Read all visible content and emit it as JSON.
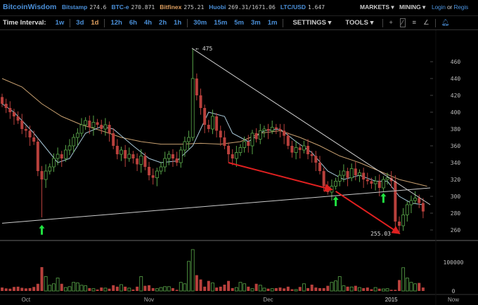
{
  "header": {
    "logo": "BitcoinWisdom",
    "tickers": [
      {
        "market": "Bitstamp",
        "price": "274.6",
        "highlight": false
      },
      {
        "market": "BTC-e",
        "price": "270.871",
        "highlight": false
      },
      {
        "market": "Bitfinex",
        "price": "275.21",
        "highlight": true
      },
      {
        "market": "Huobi",
        "price": "269.31/1671.06",
        "highlight": false
      },
      {
        "market": "LTC/USD",
        "price": "1.647",
        "highlight": false
      }
    ],
    "markets_label": "MARKETS ▾",
    "mining_label": "MINING ▾",
    "login": "Login",
    "or": "or",
    "register": "Regis"
  },
  "toolbar": {
    "time_interval_label": "Time Interval:",
    "intervals": [
      "1w",
      "3d",
      "1d",
      "12h",
      "6h",
      "4h",
      "2h",
      "1h",
      "30m",
      "15m",
      "5m",
      "3m",
      "1m"
    ],
    "active_interval": "1d",
    "settings_label": "SETTINGS ▾",
    "tools_label": "TOOLS ▾",
    "tool_icons": [
      "crosshair-icon",
      "trendline-icon",
      "horizontal-lines-icon",
      "fan-icon",
      "alert-bell-icon"
    ]
  },
  "chart_data": {
    "type": "candlestick",
    "start_date": "2014-09-25",
    "interval": "1d",
    "ylim": [
      250,
      470
    ],
    "yticks": [
      260,
      280,
      300,
      320,
      340,
      360,
      380,
      400,
      420,
      440,
      460
    ],
    "volume_ticks": [
      "0",
      "100000"
    ],
    "xticks": [
      {
        "label": "Oct",
        "index": 6
      },
      {
        "label": "Nov",
        "index": 37
      },
      {
        "label": "Dec",
        "index": 67
      },
      {
        "label": "2015",
        "index": 98
      }
    ],
    "x_end_label": "Now",
    "first_open": 418,
    "close": [
      410,
      405,
      400,
      395,
      390,
      380,
      378,
      370,
      365,
      330,
      320,
      330,
      335,
      345,
      350,
      345,
      355,
      360,
      370,
      375,
      385,
      390,
      382,
      388,
      385,
      380,
      385,
      375,
      360,
      350,
      355,
      345,
      350,
      345,
      338,
      348,
      335,
      325,
      322,
      330,
      335,
      345,
      350,
      345,
      340,
      355,
      365,
      370,
      440,
      420,
      405,
      385,
      380,
      395,
      378,
      370,
      360,
      350,
      345,
      352,
      358,
      365,
      360,
      375,
      368,
      378,
      380,
      378,
      382,
      380,
      378,
      372,
      360,
      352,
      358,
      355,
      360,
      350,
      348,
      340,
      330,
      312,
      305,
      312,
      318,
      325,
      330,
      322,
      333,
      325,
      328,
      320,
      318,
      315,
      318,
      310,
      320,
      322,
      318,
      270,
      265,
      278,
      290,
      295,
      298,
      292,
      282
    ],
    "extremes": [
      {
        "index": 10,
        "low": 275
      },
      {
        "index": 48,
        "high": 475
      },
      {
        "index": 100,
        "low": 255.03
      },
      {
        "index": 82,
        "low": 302
      },
      {
        "index": 99,
        "high": 325
      },
      {
        "index": 57,
        "low": 340
      }
    ],
    "volume": [
      12000,
      9000,
      8000,
      14000,
      15000,
      11000,
      9000,
      10000,
      14000,
      25000,
      83000,
      50000,
      20000,
      25000,
      45000,
      25000,
      12000,
      15000,
      30000,
      28000,
      20000,
      18000,
      10000,
      8000,
      5000,
      12000,
      10000,
      8000,
      20000,
      15000,
      22000,
      15000,
      10000,
      5000,
      15000,
      50000,
      18000,
      20000,
      10000,
      8000,
      12000,
      15000,
      15000,
      10000,
      4000,
      30000,
      25000,
      103000,
      144000,
      55000,
      40000,
      15000,
      35000,
      28000,
      12000,
      15000,
      22000,
      35000,
      10000,
      12000,
      30000,
      25000,
      15000,
      8000,
      25000,
      20000,
      10000,
      8000,
      8000,
      10000,
      12000,
      9000,
      15000,
      6000,
      5000,
      14000,
      25000,
      10000,
      22000,
      12000,
      10000,
      10000,
      18000,
      30000,
      35000,
      50000,
      18000,
      15000,
      14000,
      18000,
      12000,
      10000,
      12000,
      6000,
      12000,
      8000,
      7000,
      8000,
      4000,
      4000,
      38000,
      81000,
      45000,
      30000,
      25000,
      28000,
      12000
    ],
    "ma_short": [
      [
        0,
        410
      ],
      [
        3,
        400
      ],
      [
        8,
        375
      ],
      [
        14,
        340
      ],
      [
        17,
        345
      ],
      [
        21,
        375
      ],
      [
        25,
        383
      ],
      [
        28,
        380
      ],
      [
        33,
        360
      ],
      [
        37,
        345
      ],
      [
        40,
        340
      ],
      [
        44,
        342
      ],
      [
        48,
        360
      ],
      [
        52,
        400
      ],
      [
        56,
        395
      ],
      [
        58,
        375
      ],
      [
        62,
        365
      ],
      [
        66,
        378
      ],
      [
        70,
        380
      ],
      [
        74,
        365
      ],
      [
        78,
        352
      ],
      [
        82,
        330
      ],
      [
        86,
        320
      ],
      [
        90,
        325
      ],
      [
        94,
        318
      ],
      [
        97,
        318
      ],
      [
        100,
        300
      ],
      [
        103,
        292
      ],
      [
        106,
        290
      ]
    ],
    "ma_long": [
      [
        0,
        440
      ],
      [
        5,
        430
      ],
      [
        10,
        410
      ],
      [
        15,
        395
      ],
      [
        20,
        385
      ],
      [
        25,
        378
      ],
      [
        30,
        370
      ],
      [
        35,
        365
      ],
      [
        40,
        362
      ],
      [
        45,
        362
      ],
      [
        50,
        363
      ],
      [
        55,
        362
      ],
      [
        60,
        365
      ],
      [
        65,
        375
      ],
      [
        70,
        378
      ],
      [
        75,
        370
      ],
      [
        80,
        360
      ],
      [
        85,
        348
      ],
      [
        90,
        340
      ],
      [
        95,
        330
      ],
      [
        100,
        320
      ],
      [
        107,
        312
      ]
    ],
    "trendlines": [
      {
        "from": [
          47.8,
          476
        ],
        "to": [
          107.8,
          290
        ],
        "color": "#cccccc"
      },
      {
        "from": [
          0,
          268
        ],
        "to": [
          107.8,
          310
        ],
        "color": "#cccccc"
      }
    ],
    "arrows_red": [
      {
        "from": [
          57,
          340
        ],
        "to": [
          83,
          308
        ]
      },
      {
        "from": [
          84,
          306
        ],
        "to": [
          100,
          256
        ]
      }
    ],
    "arrows_green": [
      {
        "index": 10,
        "price": 266
      },
      {
        "index": 84,
        "price": 300
      },
      {
        "index": 96,
        "price": 304
      }
    ],
    "annotations": [
      {
        "text": "← 475",
        "index": 48,
        "price": 476
      },
      {
        "text": "255.03",
        "index": 100,
        "price": 255.03
      }
    ],
    "colors": {
      "up": "#5aa84a",
      "down": "#b8403c",
      "ma_short": "#a8c8d8",
      "ma_long": "#c8a070",
      "arrow_red": "#e02020",
      "arrow_green": "#20e040"
    }
  }
}
